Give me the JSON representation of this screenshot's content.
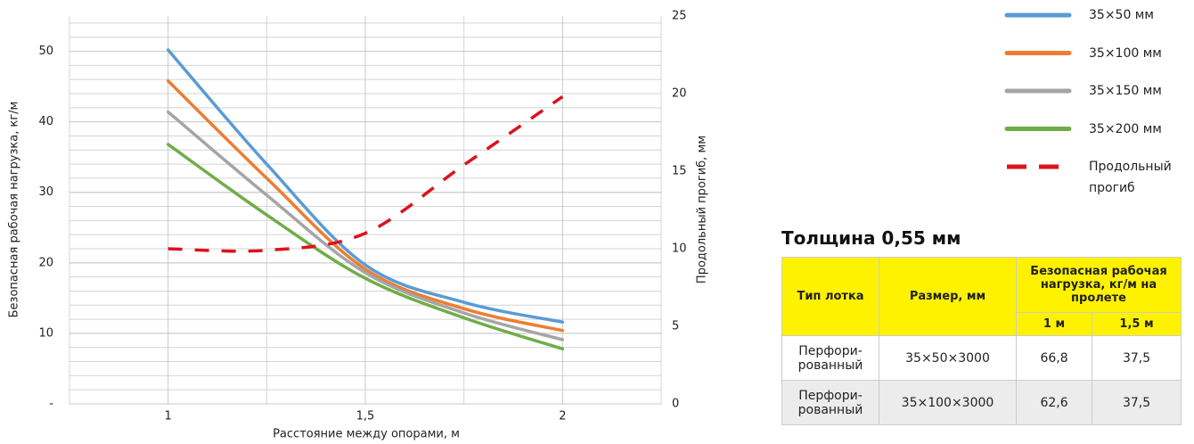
{
  "chart_data": {
    "type": "line",
    "x": [
      1,
      1.25,
      1.5,
      1.75,
      2
    ],
    "xlim": [
      0.75,
      2.25
    ],
    "xticks": [
      1,
      {
        "value": 1.5,
        "label": "1,5"
      },
      2
    ],
    "xminor": [
      1.25,
      1.75
    ],
    "ylim": [
      0,
      55
    ],
    "yticks": [
      {
        "value": 0,
        "label": "-"
      },
      10,
      20,
      30,
      40,
      50
    ],
    "ygrid_step": 2,
    "y2lim": [
      0,
      25
    ],
    "y2ticks": [
      0,
      5,
      10,
      15,
      20,
      25
    ],
    "xlabel": "Расстояние между опорами, м",
    "ylabel": "Безопасная рабочая нагрузка, кг/м",
    "y2label": "Продольный прогиб, мм",
    "grid": true,
    "legend": "right",
    "series": [
      {
        "name": "35×50 мм",
        "color": "#5b9bd5",
        "values": [
          50.2,
          34,
          19.7,
          14.4,
          11.6
        ]
      },
      {
        "name": "35×100 мм",
        "color": "#ed7d31",
        "values": [
          45.8,
          32,
          19.1,
          13.5,
          10.4
        ]
      },
      {
        "name": "35×150 мм",
        "color": "#a5a5a5",
        "values": [
          41.4,
          29.6,
          18.6,
          12.9,
          9.1
        ]
      },
      {
        "name": "35×200 мм",
        "color": "#70ad47",
        "values": [
          36.8,
          26.8,
          17.8,
          12.2,
          7.8
        ]
      },
      {
        "name": "Продольный прогиб",
        "color": "#e0101e",
        "dashed": true,
        "axis": "y2",
        "values": [
          10,
          9.9,
          11,
          15.4,
          19.8
        ]
      }
    ]
  },
  "table": {
    "title": "Толщина 0,55 мм",
    "header": [
      "Тип лотка",
      "Размер, мм",
      "Безопасная рабочая нагрузка, кг/м на пролете"
    ],
    "subheader": [
      "1 м",
      "1,5 м"
    ],
    "rows": [
      [
        "Перфори-\nрованный",
        "35×50×3000",
        "66,8",
        "37,5"
      ],
      [
        "Перфори-\nрованный",
        "35×100×3000",
        "62,6",
        "37,5"
      ]
    ]
  }
}
